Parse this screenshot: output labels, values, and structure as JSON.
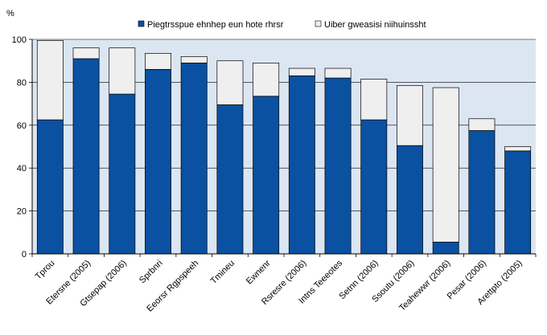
{
  "chart_data": {
    "type": "bar",
    "stacked": true,
    "ylabel": "%",
    "ylim": [
      0,
      100
    ],
    "yticks": [
      0,
      20,
      40,
      60,
      80,
      100
    ],
    "grid": "horizontal",
    "legend_position": "top",
    "categories": [
      "Tprou",
      "Etersne (2005)",
      "Gtsepap (2006)",
      "Sprbnri",
      "Eeorsr Rgpspeeh",
      "Tmineu",
      "Ewnenr",
      "Rsresre (2006)",
      "Intns Teeeotes",
      "Setnn (2006)",
      "Ssoutu (2006)",
      "Teahewwr (2006)",
      "Pesar (2006)",
      "Arettpto (2005)"
    ],
    "series": [
      {
        "name": "Piegtrsspue ehnhep eun hote rhrsr",
        "color": "#0a51a1",
        "values": [
          62.5,
          91,
          74.5,
          86,
          89,
          69.5,
          73.5,
          83,
          82,
          62.5,
          50.5,
          5.5,
          57.5,
          48
        ]
      },
      {
        "name": "Uiber gweasisi niihuinssht",
        "color": "#efefef",
        "values": [
          37,
          5,
          21.5,
          7.5,
          3,
          20.5,
          15.5,
          3.5,
          4.5,
          19,
          28,
          72,
          5.5,
          2
        ]
      }
    ],
    "plot_background": "#dce6f2"
  }
}
